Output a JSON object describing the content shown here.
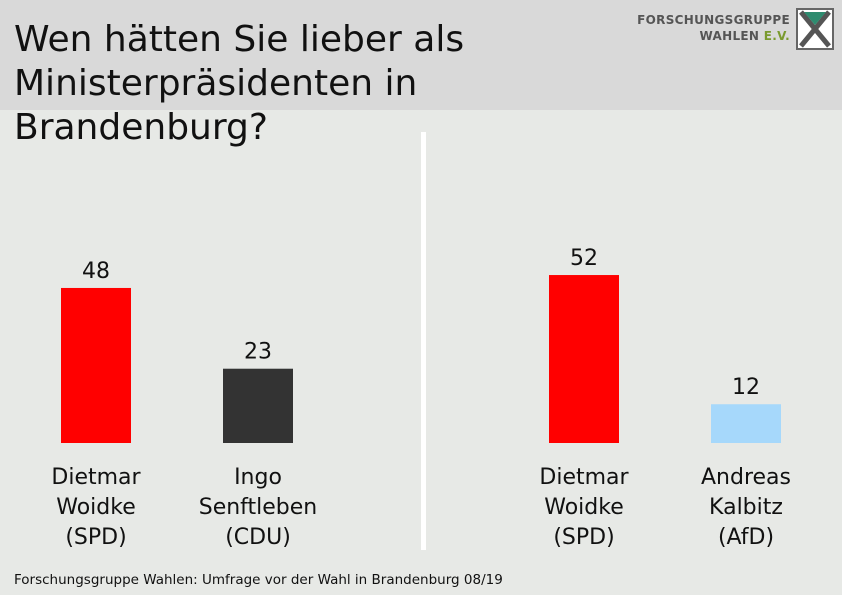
{
  "title": "Wen hätten Sie lieber als Ministerpräsidenten in Brandenburg?",
  "logo": {
    "line1": "FORSCHUNGSGRUPPE",
    "line2_main": "WAHLEN",
    "line2_ev": "E.V."
  },
  "footer": "Forschungsgruppe Wahlen: Umfrage vor der Wahl in Brandenburg 08/19",
  "chart_data": [
    {
      "type": "bar",
      "categories": [
        [
          "Dietmar",
          "Woidke",
          "(SPD)"
        ],
        [
          "Ingo",
          "Senftleben",
          "(CDU)"
        ]
      ],
      "values": [
        48,
        23
      ],
      "colors": [
        "#ff0000",
        "#333333"
      ],
      "ylim": [
        0,
        60
      ]
    },
    {
      "type": "bar",
      "categories": [
        [
          "Dietmar",
          "Woidke",
          "(SPD)"
        ],
        [
          "Andreas",
          "Kalbitz",
          "(AfD)"
        ]
      ],
      "values": [
        52,
        12
      ],
      "colors": [
        "#ff0000",
        "#a6d8fb"
      ],
      "ylim": [
        0,
        60
      ]
    }
  ]
}
